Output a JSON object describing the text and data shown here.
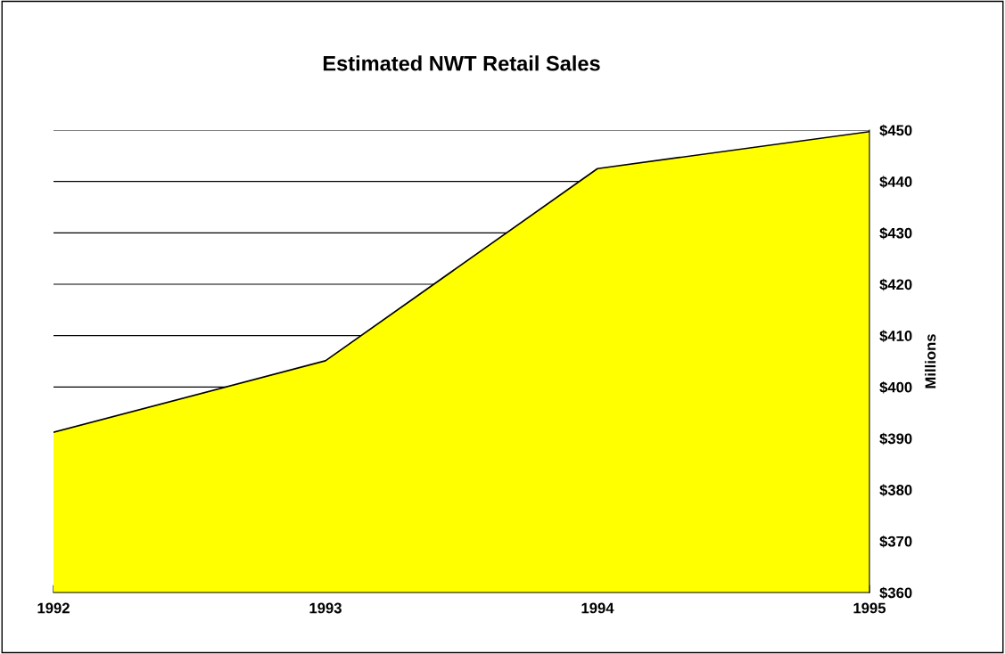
{
  "chart_data": {
    "type": "area",
    "title": "Estimated NWT Retail Sales",
    "ylabel": "Millions",
    "categories": [
      "1992",
      "1993",
      "1994",
      "1995"
    ],
    "series": [
      {
        "color": "#ffff00",
        "values": [
          391.2,
          405.1,
          442.5,
          449.7
        ]
      }
    ],
    "ylim": [
      360,
      450
    ],
    "yticks": [
      {
        "value": 360,
        "label": "$360"
      },
      {
        "value": 370,
        "label": "$370"
      },
      {
        "value": 380,
        "label": "$380"
      },
      {
        "value": 390,
        "label": "$390"
      },
      {
        "value": 400,
        "label": "$400"
      },
      {
        "value": 410,
        "label": "$410"
      },
      {
        "value": 420,
        "label": "$420"
      },
      {
        "value": 430,
        "label": "$430"
      },
      {
        "value": 440,
        "label": "$440"
      },
      {
        "value": 450,
        "label": "$450"
      }
    ],
    "grid": "y",
    "legend": false
  }
}
